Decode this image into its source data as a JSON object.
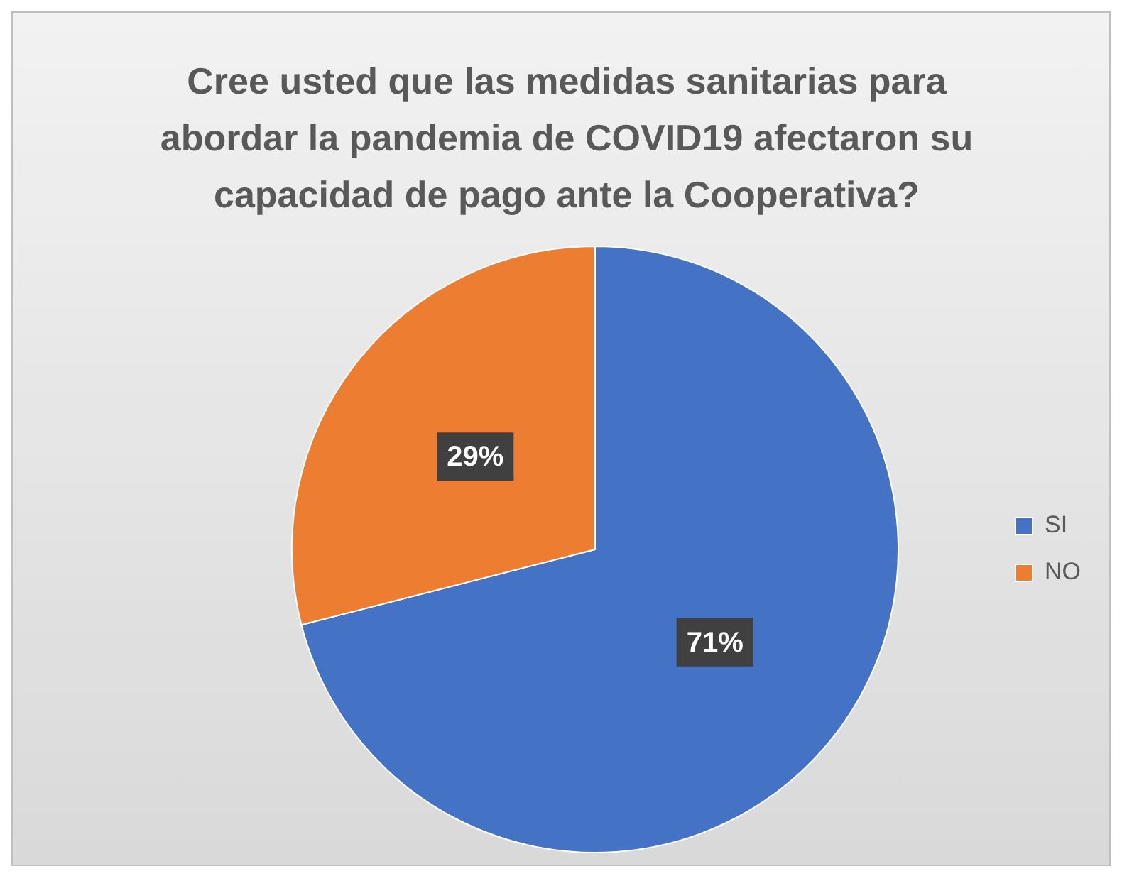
{
  "chart_data": {
    "type": "pie",
    "title": "Cree usted que las medidas sanitarias para abordar la pandemia de COVID19 afectaron su capacidad  de pago ante la Cooperativa?",
    "categories": [
      "SI",
      "NO"
    ],
    "values": [
      71,
      29
    ],
    "colors": [
      "#4472c4",
      "#ed7d31"
    ],
    "value_labels": [
      "71%",
      "29%"
    ],
    "legend": "right"
  }
}
